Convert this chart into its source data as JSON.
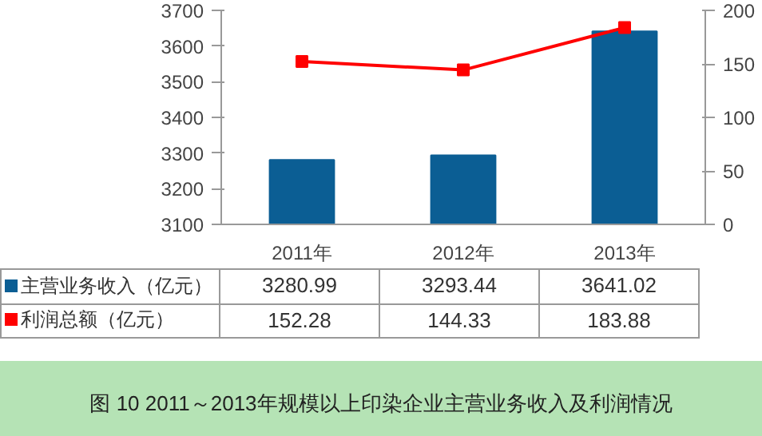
{
  "chart_data": {
    "type": "bar",
    "title": "图 10  2011～2013年规模以上印染企业主营业务收入及利润情况",
    "categories": [
      "2011年",
      "2012年",
      "2013年"
    ],
    "series": [
      {
        "name": "主营业务收入（亿元）",
        "color": "#0b5e94",
        "values": [
          3280.99,
          3293.44,
          3641.02
        ]
      },
      {
        "name": "利润总额（亿元）",
        "color": "#ff0000",
        "type": "line",
        "axis": "y2",
        "values": [
          152.28,
          144.33,
          183.88
        ]
      }
    ],
    "ylim": [
      3100,
      3700
    ],
    "yticks": [
      3100,
      3200,
      3300,
      3400,
      3500,
      3600,
      3700
    ],
    "y2lim": [
      0,
      200
    ],
    "y2ticks": [
      0,
      50,
      100,
      150,
      200
    ],
    "grid": false,
    "legend": "bottom",
    "marker": "square",
    "line_style": "solid",
    "data_labels": true
  }
}
